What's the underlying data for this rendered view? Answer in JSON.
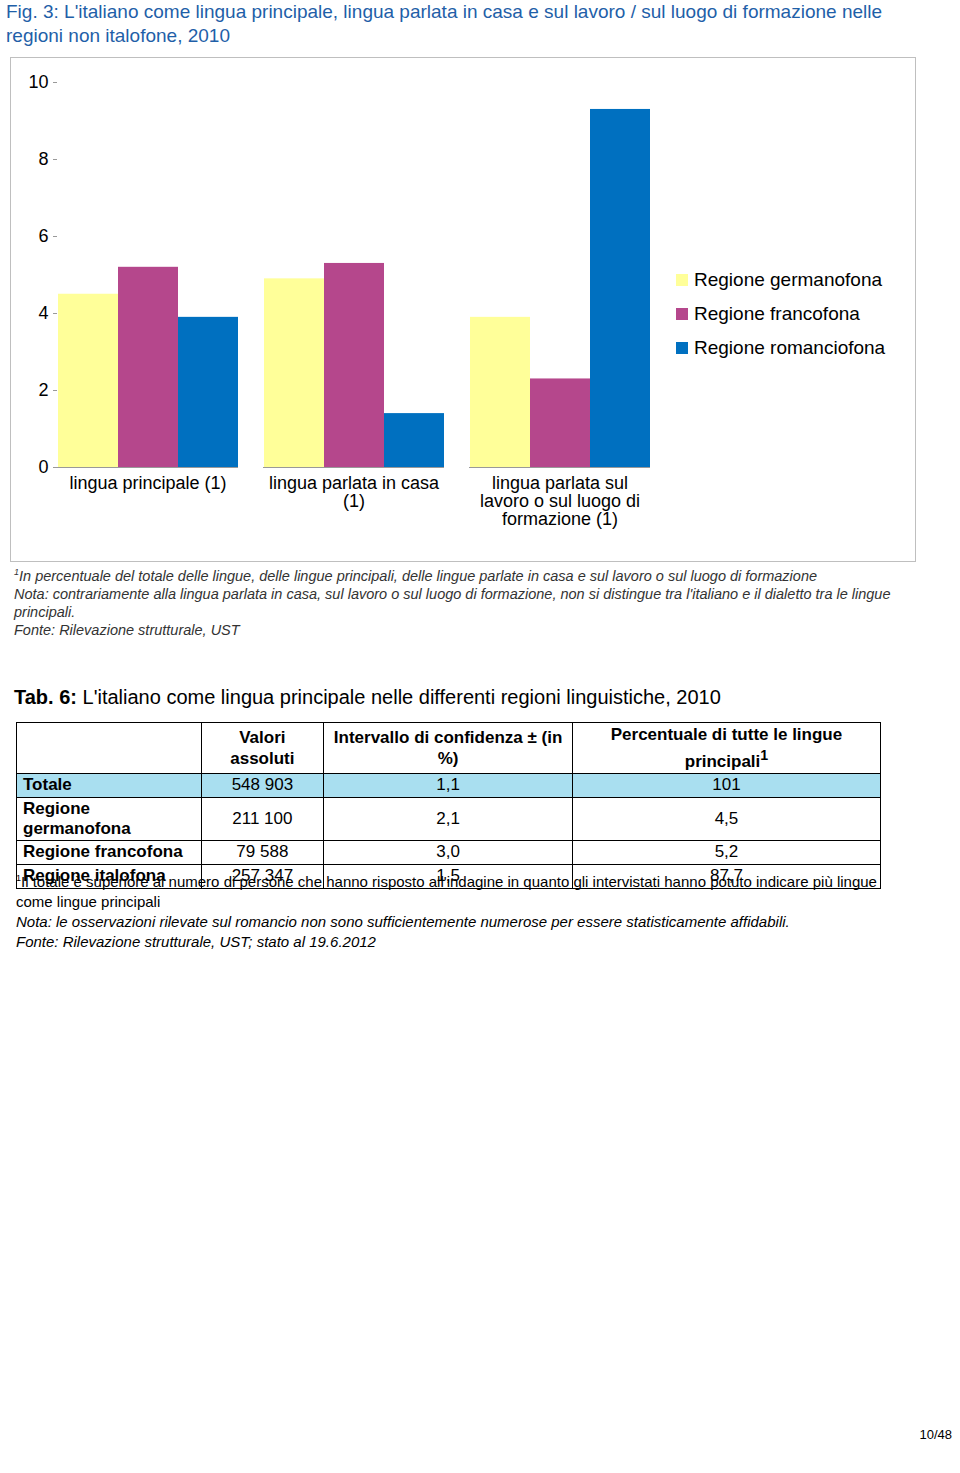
{
  "figure_title": "Fig. 3: L'italiano come lingua principale, lingua parlata in casa e sul lavoro / sul luogo di formazione nelle regioni non italofone, 2010",
  "chart_data": {
    "type": "bar",
    "categories": [
      "lingua principale (1)",
      "lingua parlata in casa (1)",
      "lingua parlata sul lavoro o sul luogo di formazione (1)"
    ],
    "series": [
      {
        "name": "Regione germanofona",
        "color": "#ffff99",
        "values": [
          4.5,
          4.9,
          3.9
        ]
      },
      {
        "name": "Regione francofona",
        "color": "#b5478c",
        "values": [
          5.2,
          5.3,
          2.3
        ]
      },
      {
        "name": "Regione romanciofona",
        "color": "#0070c0",
        "values": [
          3.9,
          1.4,
          9.3
        ]
      }
    ],
    "ylim": [
      0,
      10
    ],
    "yticks": [
      0,
      2,
      4,
      6,
      8,
      10
    ],
    "grid": false,
    "legend": "right"
  },
  "figure_notes": {
    "footnote_mark": "1",
    "footnote": "In percentuale del totale delle lingue, delle lingue principali, delle lingue parlate in casa e sul lavoro o sul luogo di formazione",
    "note": "Nota: contrariamente alla lingua parlata in casa, sul lavoro o sul luogo di formazione, non si distingue tra l'italiano e il dialetto tra le lingue principali.",
    "source": "Fonte: Rilevazione strutturale, UST"
  },
  "table": {
    "title_prefix": "Tab. 6:",
    "title": "L'italiano come lingua principale nelle differenti regioni linguistiche, 2010",
    "header": [
      "Valori assoluti",
      "Intervallo di confidenza ± (in %)",
      "Percentuale di tutte le lingue principali"
    ],
    "header_footnote_mark": "1",
    "rows": [
      [
        "Totale",
        "548 903",
        "1,1",
        "101"
      ],
      [
        "Regione germanofona",
        "211 100",
        "2,1",
        "4,5"
      ],
      [
        "Regione francofona",
        "79 588",
        "3,0",
        "5,2"
      ],
      [
        "Regione italofona",
        "257 347",
        "1,5",
        "87,7"
      ]
    ],
    "footnote_mark": "1",
    "footnote": "Il totale è superiore al numero di persone che hanno risposto all'indagine in quanto gli intervistati hanno potuto indicare più lingue come lingue principali",
    "note": "Nota: le osservazioni rilevate sul romancio non sono sufficientemente numerose per essere statisticamente affidabili.",
    "source": "Fonte: Rilevazione strutturale, UST; stato al 19.6.2012"
  },
  "page_number": "10/48"
}
